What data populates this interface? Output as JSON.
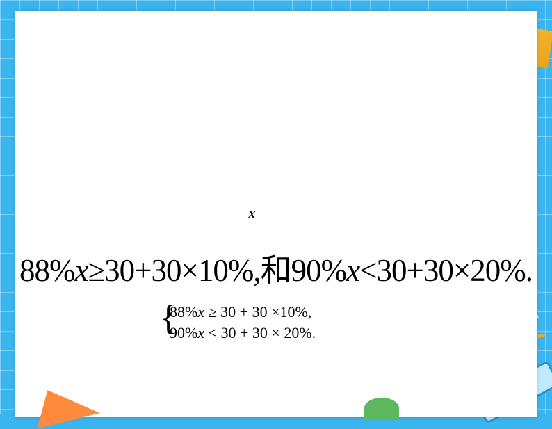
{
  "variable": "x",
  "bigLine": {
    "prefix": "88",
    "mid1": "%",
    "x1": "x",
    "seg1": "≥30+30×10%,",
    "cjk": "和",
    "seg2": "90%",
    "x2": "x",
    "seg3": "<30+30×20%."
  },
  "system": {
    "line1_a": "88%",
    "line1_x": "x",
    "line1_b": " ≥ 30 + 30 ×10%,",
    "line2_a": "90%",
    "line2_x": "x",
    "line2_b": " < 30 + 30 × 20%."
  },
  "colors": {
    "page_bg": "#3bb5ef",
    "sheet_bg": "#ffffff",
    "text": "#000000"
  }
}
